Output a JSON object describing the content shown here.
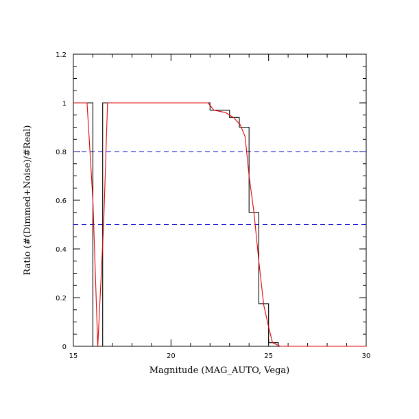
{
  "chart_data": {
    "type": "line",
    "title": "",
    "xlabel": "Magnitude (MAG_AUTO, Vega)",
    "ylabel": "Ratio (#(Dimmed+Noise)/#Real)",
    "xlim": [
      15,
      30
    ],
    "ylim": [
      0,
      1.2
    ],
    "x_ticks": [
      15,
      20,
      25,
      30
    ],
    "x_tick_labels": [
      "15",
      "20",
      "25",
      "30"
    ],
    "y_ticks": [
      0,
      0.2,
      0.4,
      0.6,
      0.8,
      1,
      1.2
    ],
    "y_tick_labels": [
      "0",
      "0.2",
      "0.4",
      "0.6",
      "0.8",
      "1",
      "1.2"
    ],
    "grid": false,
    "reference_lines": [
      {
        "y": 0.8,
        "color": "#0000cc",
        "style": "dashed"
      },
      {
        "y": 0.5,
        "color": "#0000cc",
        "style": "dashed"
      }
    ],
    "series": [
      {
        "kind": "step",
        "color": "#000000",
        "points": [
          [
            15.0,
            1.0
          ],
          [
            16.0,
            1.0
          ],
          [
            16.0,
            0.0
          ],
          [
            16.5,
            0.0
          ],
          [
            16.5,
            1.0
          ],
          [
            22.0,
            1.0
          ],
          [
            22.0,
            0.97
          ],
          [
            22.5,
            0.97
          ],
          [
            22.5,
            0.97
          ],
          [
            23.0,
            0.97
          ],
          [
            23.0,
            0.94
          ],
          [
            23.5,
            0.94
          ],
          [
            23.5,
            0.9
          ],
          [
            24.0,
            0.9
          ],
          [
            24.0,
            0.55
          ],
          [
            24.5,
            0.55
          ],
          [
            24.5,
            0.175
          ],
          [
            25.0,
            0.175
          ],
          [
            25.0,
            0.015
          ],
          [
            25.5,
            0.015
          ],
          [
            25.5,
            0.0
          ],
          [
            30.0,
            0.0
          ]
        ]
      },
      {
        "kind": "line",
        "color": "#e00000",
        "points": [
          [
            15.0,
            1.0
          ],
          [
            15.7,
            1.0
          ],
          [
            16.0,
            0.6
          ],
          [
            16.25,
            0.0
          ],
          [
            16.55,
            0.5
          ],
          [
            16.75,
            1.0
          ],
          [
            21.9,
            1.0
          ],
          [
            22.2,
            0.97
          ],
          [
            22.8,
            0.96
          ],
          [
            23.2,
            0.94
          ],
          [
            23.55,
            0.91
          ],
          [
            23.8,
            0.86
          ],
          [
            24.0,
            0.7
          ],
          [
            24.25,
            0.55
          ],
          [
            24.5,
            0.35
          ],
          [
            24.75,
            0.17
          ],
          [
            25.0,
            0.08
          ],
          [
            25.2,
            0.015
          ],
          [
            25.6,
            0.0
          ],
          [
            30.0,
            0.0
          ]
        ]
      }
    ]
  }
}
